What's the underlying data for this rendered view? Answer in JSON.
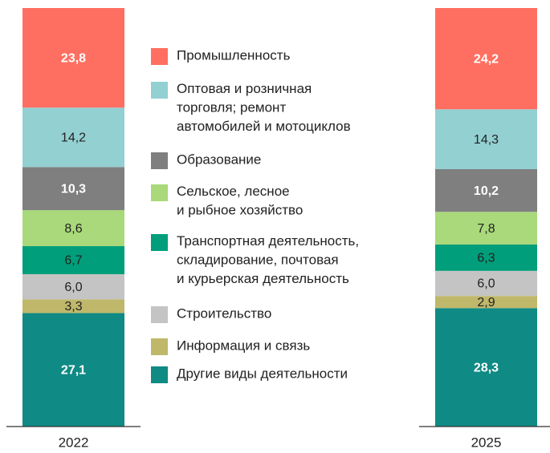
{
  "chart_data": {
    "type": "stacked-bar",
    "categories": [
      "2022",
      "2025"
    ],
    "series": [
      {
        "name": "Промышленность",
        "color": "#ff6f61",
        "label_color": "#ffffff",
        "values": [
          23.8,
          24.2
        ],
        "value_labels": [
          "23,8",
          "24,2"
        ]
      },
      {
        "name": "Оптовая и розничная\nторговля; ремонт\nавтомобилей и мотоциклов",
        "color": "#93d0d2",
        "label_color": "#222222",
        "values": [
          14.2,
          14.3
        ],
        "value_labels": [
          "14,2",
          "14,3"
        ]
      },
      {
        "name": "Образование",
        "color": "#7f7f7f",
        "label_color": "#ffffff",
        "values": [
          10.3,
          10.2
        ],
        "value_labels": [
          "10,3",
          "10,2"
        ]
      },
      {
        "name": "Сельское, лесное\nи рыбное хозяйство",
        "color": "#a9d97a",
        "label_color": "#222222",
        "values": [
          8.6,
          7.8
        ],
        "value_labels": [
          "8,6",
          "7,8"
        ]
      },
      {
        "name": "Транспортная деятельность,\nскладирование, почтовая\nи курьерская деятельность",
        "color": "#009e7a",
        "label_color": "#222222",
        "values": [
          6.7,
          6.3
        ],
        "value_labels": [
          "6,7",
          "6,3"
        ]
      },
      {
        "name": "Строительство",
        "color": "#c4c4c4",
        "label_color": "#222222",
        "values": [
          6.0,
          6.0
        ],
        "value_labels": [
          "6,0",
          "6,0"
        ]
      },
      {
        "name": "Информация и связь",
        "color": "#bfb86a",
        "label_color": "#222222",
        "values": [
          3.3,
          2.9
        ],
        "value_labels": [
          "3,3",
          "2,9"
        ]
      },
      {
        "name": "Другие виды деятельности",
        "color": "#0f8a84",
        "label_color": "#ffffff",
        "values": [
          27.1,
          28.3
        ],
        "value_labels": [
          "27,1",
          "28,3"
        ]
      }
    ],
    "ylim": [
      0,
      100
    ]
  }
}
